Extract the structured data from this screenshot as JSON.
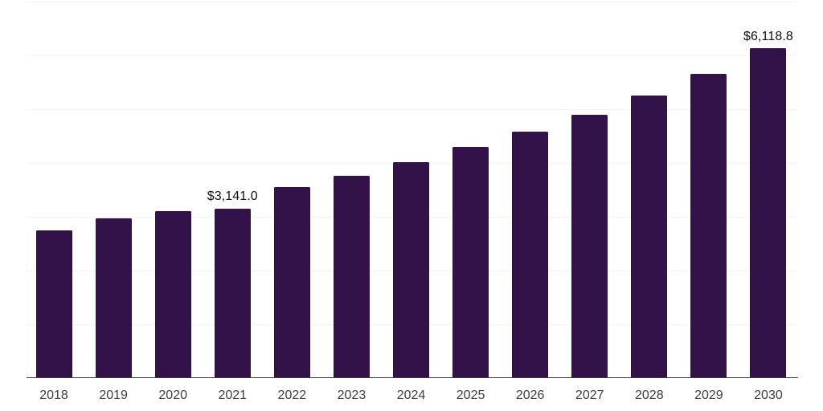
{
  "chart_data": {
    "type": "bar",
    "title": "",
    "xlabel": "",
    "ylabel": "",
    "categories": [
      "2018",
      "2019",
      "2020",
      "2021",
      "2022",
      "2023",
      "2024",
      "2025",
      "2026",
      "2027",
      "2028",
      "2029",
      "2030"
    ],
    "values": [
      2740,
      2965,
      3090,
      3141.0,
      3535,
      3755,
      4000,
      4285,
      4570,
      4885,
      5240,
      5645,
      6118.8
    ],
    "data_labels": [
      null,
      null,
      null,
      "$3,141.0",
      null,
      null,
      null,
      null,
      null,
      null,
      null,
      null,
      "$6,118.8"
    ],
    "ylim": [
      0,
      7000
    ],
    "gridline_step": 1000,
    "grid": "horizontal-only",
    "legend_position": "none",
    "colors": {
      "bar": "#33124a",
      "axis_line": "#3a3a3a",
      "gridline": "#f2f2f2",
      "tick_label": "#3d3d3d",
      "value_label": "#111111",
      "background": "#ffffff"
    }
  }
}
